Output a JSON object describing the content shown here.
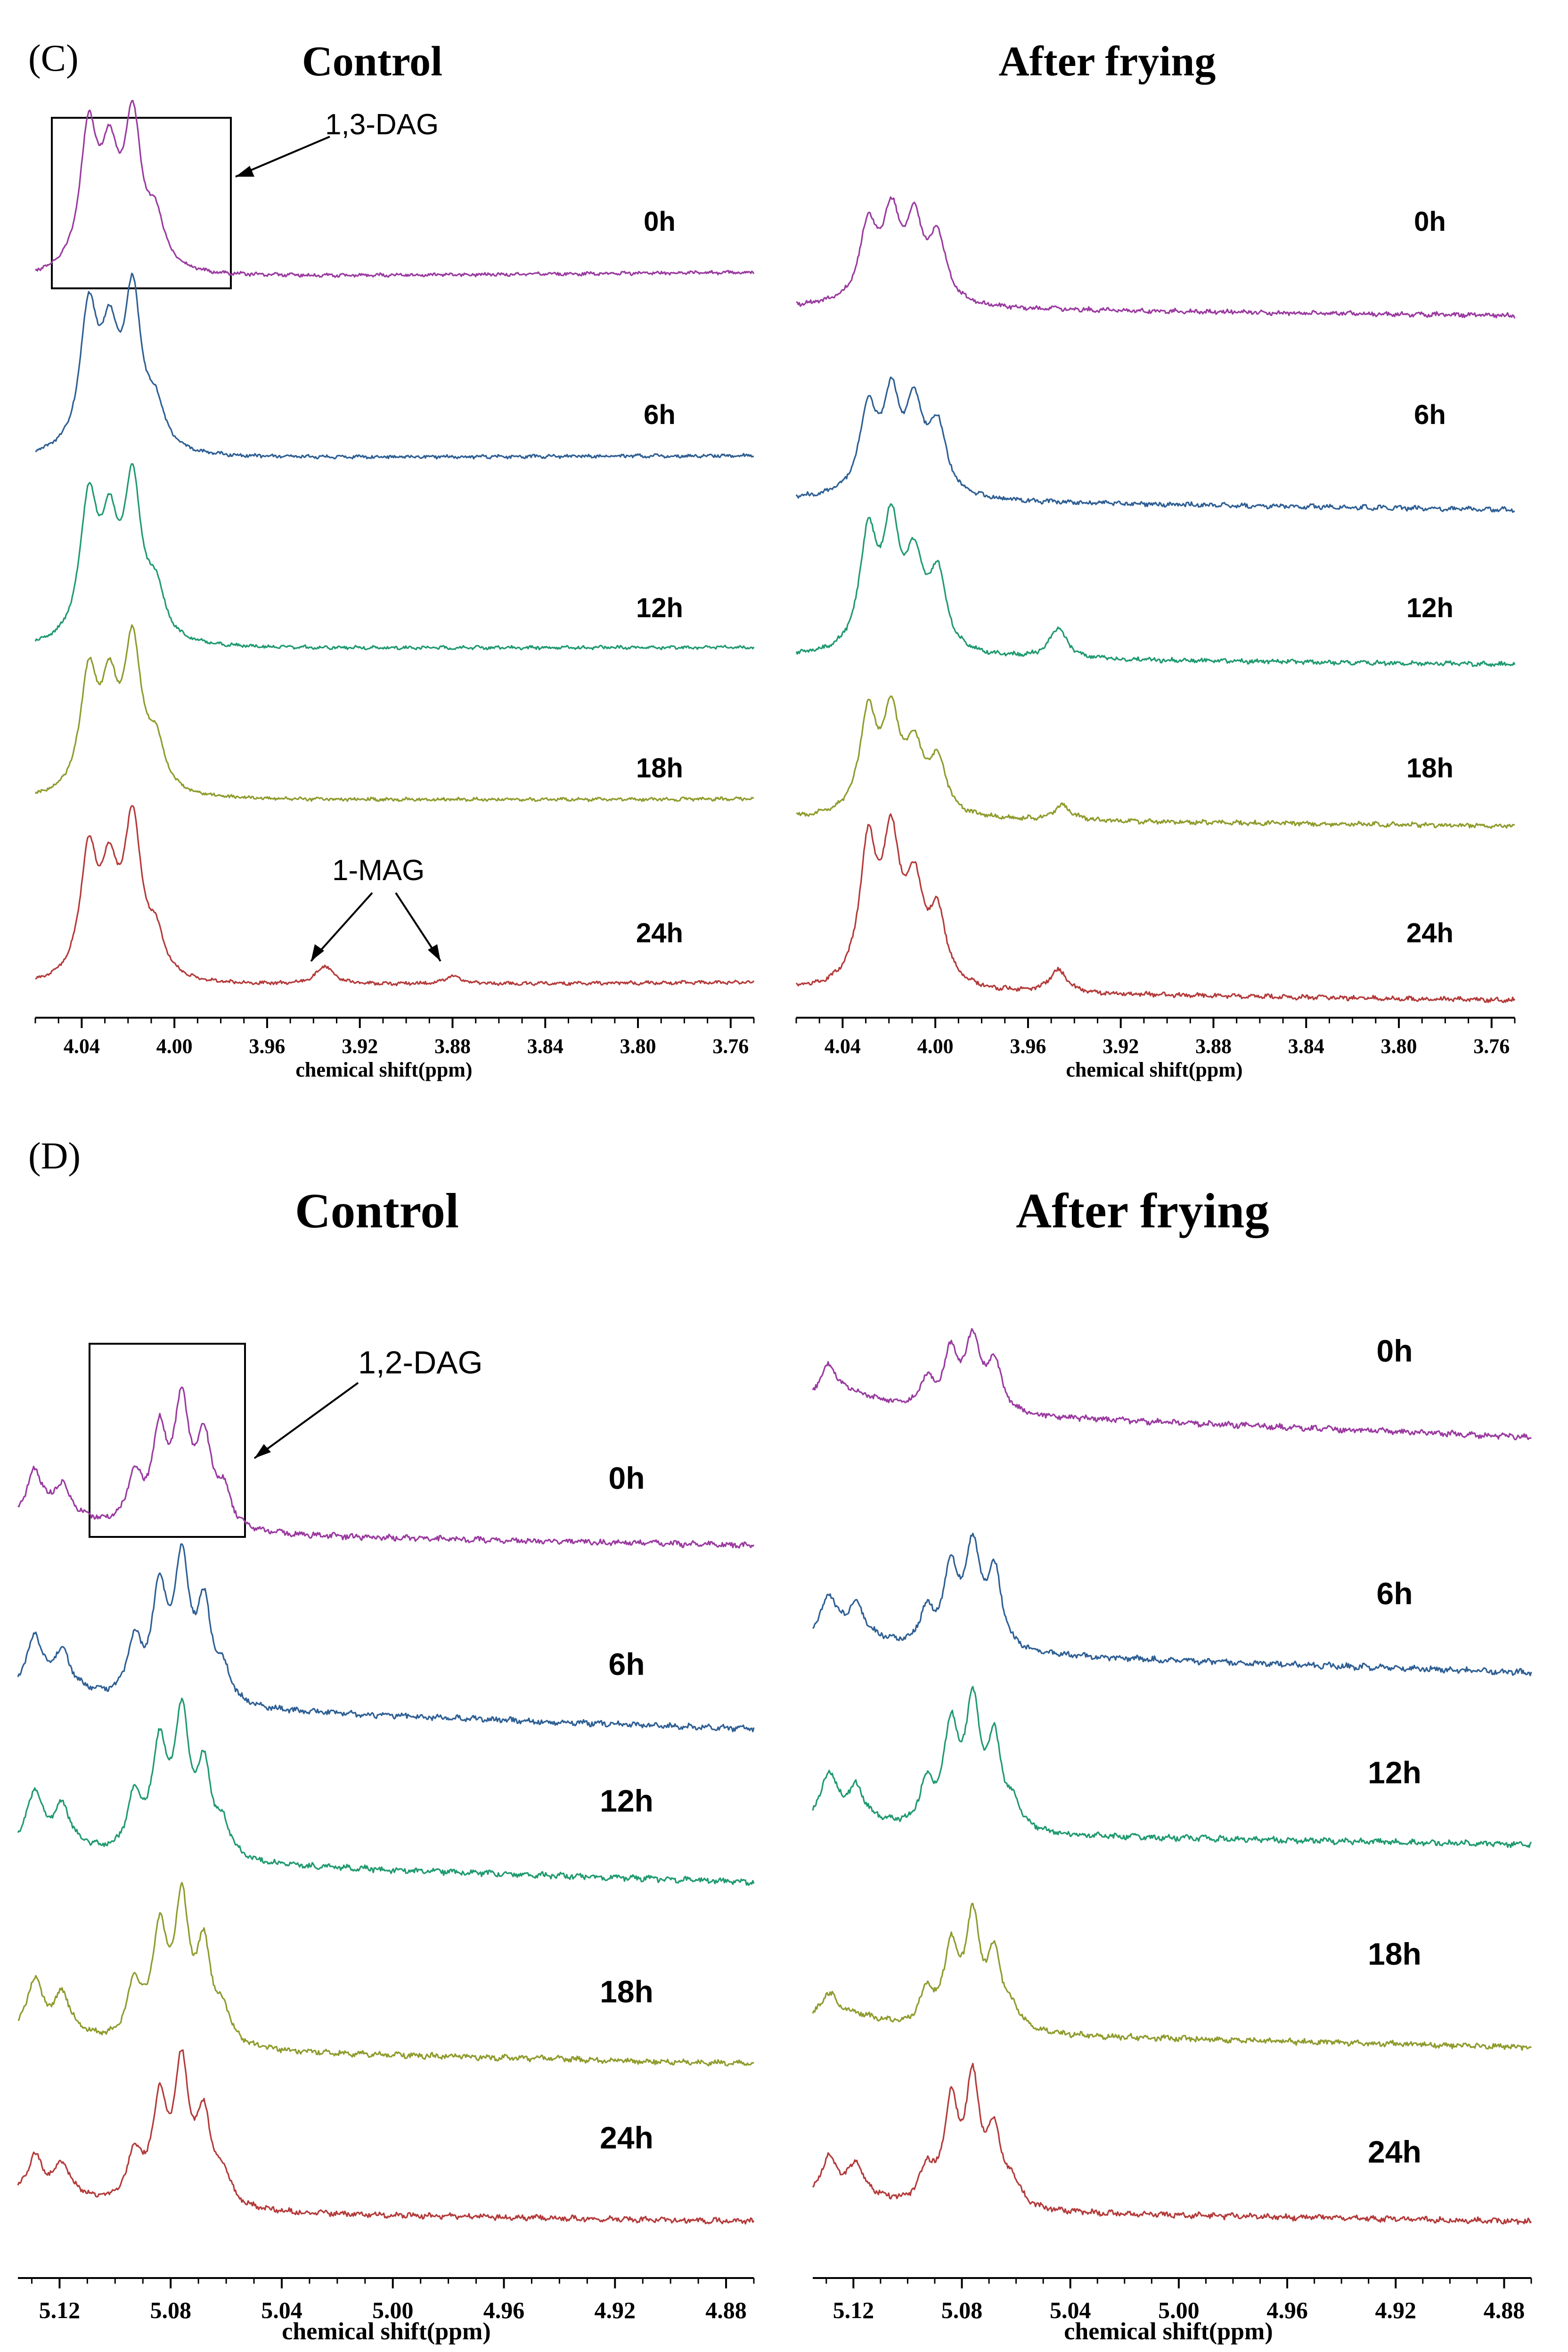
{
  "colors": {
    "0h": "#9a3aa0",
    "6h": "#2e5f94",
    "12h": "#1f9a6e",
    "18h": "#8f9b2c",
    "24h": "#b43a3a",
    "axis": "#000000"
  },
  "chart_data": [
    {
      "panel_label": "(C)",
      "title": "Control",
      "type": "line",
      "xlabel": "chemical shift(ppm)",
      "xlim": [
        4.06,
        3.75
      ],
      "xticks": [
        "4.04",
        "4.00",
        "3.96",
        "3.92",
        "3.88",
        "3.84",
        "3.80",
        "3.76"
      ],
      "series": [
        {
          "name": "0h",
          "peaks": [
            {
              "x": 4.037,
              "h": 0.9
            },
            {
              "x": 4.028,
              "h": 0.65
            },
            {
              "x": 4.018,
              "h": 0.95
            },
            {
              "x": 4.008,
              "h": 0.3
            }
          ]
        },
        {
          "name": "6h",
          "peaks": [
            {
              "x": 4.037,
              "h": 0.9
            },
            {
              "x": 4.028,
              "h": 0.65
            },
            {
              "x": 4.018,
              "h": 1.0
            },
            {
              "x": 4.008,
              "h": 0.25
            }
          ]
        },
        {
          "name": "12h",
          "peaks": [
            {
              "x": 4.037,
              "h": 0.9
            },
            {
              "x": 4.028,
              "h": 0.65
            },
            {
              "x": 4.018,
              "h": 1.0
            },
            {
              "x": 4.008,
              "h": 0.3
            }
          ]
        },
        {
          "name": "18h",
          "peaks": [
            {
              "x": 4.037,
              "h": 0.75
            },
            {
              "x": 4.028,
              "h": 0.6
            },
            {
              "x": 4.018,
              "h": 0.95
            },
            {
              "x": 4.008,
              "h": 0.3
            }
          ]
        },
        {
          "name": "24h",
          "peaks": [
            {
              "x": 4.037,
              "h": 0.8
            },
            {
              "x": 4.028,
              "h": 0.6
            },
            {
              "x": 4.018,
              "h": 1.0
            },
            {
              "x": 4.008,
              "h": 0.25
            },
            {
              "x": 3.935,
              "h": 0.12
            },
            {
              "x": 3.88,
              "h": 0.05
            }
          ]
        }
      ],
      "annotations": [
        {
          "text": "1,3-DAG"
        },
        {
          "text": "1-MAG"
        }
      ]
    },
    {
      "title": "After frying",
      "type": "line",
      "xlabel": "chemical shift(ppm)",
      "xlim": [
        4.06,
        3.75
      ],
      "xticks": [
        "4.04",
        "4.00",
        "3.96",
        "3.92",
        "3.88",
        "3.84",
        "3.80",
        "3.76"
      ],
      "series": [
        {
          "name": "0h",
          "peaks": [
            {
              "x": 4.029,
              "h": 0.5
            },
            {
              "x": 4.019,
              "h": 0.55
            },
            {
              "x": 4.009,
              "h": 0.5
            },
            {
              "x": 3.999,
              "h": 0.42
            }
          ]
        },
        {
          "name": "6h",
          "peaks": [
            {
              "x": 4.029,
              "h": 0.55
            },
            {
              "x": 4.019,
              "h": 0.6
            },
            {
              "x": 4.009,
              "h": 0.55
            },
            {
              "x": 3.999,
              "h": 0.45
            }
          ]
        },
        {
          "name": "12h",
          "peaks": [
            {
              "x": 4.029,
              "h": 0.75
            },
            {
              "x": 4.019,
              "h": 0.78
            },
            {
              "x": 4.009,
              "h": 0.55
            },
            {
              "x": 3.999,
              "h": 0.5
            },
            {
              "x": 3.947,
              "h": 0.2
            }
          ]
        },
        {
          "name": "18h",
          "peaks": [
            {
              "x": 4.029,
              "h": 0.65
            },
            {
              "x": 4.019,
              "h": 0.62
            },
            {
              "x": 4.009,
              "h": 0.4
            },
            {
              "x": 3.999,
              "h": 0.35
            },
            {
              "x": 3.945,
              "h": 0.1
            }
          ]
        },
        {
          "name": "24h",
          "peaks": [
            {
              "x": 4.029,
              "h": 0.9
            },
            {
              "x": 4.019,
              "h": 0.9
            },
            {
              "x": 4.009,
              "h": 0.6
            },
            {
              "x": 3.999,
              "h": 0.45
            },
            {
              "x": 3.947,
              "h": 0.15
            }
          ]
        }
      ]
    },
    {
      "panel_label": "(D)",
      "title": "Control",
      "type": "line",
      "xlabel": "chemical shift(ppm)",
      "xlim": [
        5.135,
        4.87
      ],
      "xticks": [
        "5.12",
        "5.08",
        "5.04",
        "5.00",
        "4.96",
        "4.92",
        "4.88"
      ],
      "series": [
        {
          "name": "0h",
          "peaks": [
            {
              "x": 5.129,
              "h": 0.3
            },
            {
              "x": 5.119,
              "h": 0.2
            },
            {
              "x": 5.093,
              "h": 0.35
            },
            {
              "x": 5.084,
              "h": 0.65
            },
            {
              "x": 5.076,
              "h": 0.85
            },
            {
              "x": 5.068,
              "h": 0.6
            },
            {
              "x": 5.061,
              "h": 0.25
            }
          ]
        },
        {
          "name": "6h",
          "peaks": [
            {
              "x": 5.129,
              "h": 0.35
            },
            {
              "x": 5.119,
              "h": 0.25
            },
            {
              "x": 5.093,
              "h": 0.4
            },
            {
              "x": 5.084,
              "h": 0.75
            },
            {
              "x": 5.076,
              "h": 0.95
            },
            {
              "x": 5.068,
              "h": 0.65
            },
            {
              "x": 5.061,
              "h": 0.2
            }
          ]
        },
        {
          "name": "12h",
          "peaks": [
            {
              "x": 5.129,
              "h": 0.35
            },
            {
              "x": 5.119,
              "h": 0.25
            },
            {
              "x": 5.093,
              "h": 0.4
            },
            {
              "x": 5.084,
              "h": 0.75
            },
            {
              "x": 5.076,
              "h": 0.95
            },
            {
              "x": 5.068,
              "h": 0.6
            },
            {
              "x": 5.061,
              "h": 0.2
            }
          ]
        },
        {
          "name": "18h",
          "peaks": [
            {
              "x": 5.129,
              "h": 0.35
            },
            {
              "x": 5.119,
              "h": 0.25
            },
            {
              "x": 5.093,
              "h": 0.4
            },
            {
              "x": 5.084,
              "h": 0.75
            },
            {
              "x": 5.076,
              "h": 0.95
            },
            {
              "x": 5.068,
              "h": 0.65
            },
            {
              "x": 5.061,
              "h": 0.2
            }
          ]
        },
        {
          "name": "24h",
          "peaks": [
            {
              "x": 5.129,
              "h": 0.25
            },
            {
              "x": 5.119,
              "h": 0.2
            },
            {
              "x": 5.093,
              "h": 0.35
            },
            {
              "x": 5.084,
              "h": 0.7
            },
            {
              "x": 5.076,
              "h": 0.95
            },
            {
              "x": 5.068,
              "h": 0.6
            },
            {
              "x": 5.061,
              "h": 0.2
            }
          ]
        }
      ],
      "annotations": [
        {
          "text": "1,2-DAG"
        }
      ]
    },
    {
      "title": "After frying",
      "type": "line",
      "xlabel": "chemical shift(ppm)",
      "xlim": [
        5.135,
        4.87
      ],
      "xticks": [
        "5.12",
        "5.08",
        "5.04",
        "5.00",
        "4.96",
        "4.92",
        "4.88"
      ],
      "series": [
        {
          "name": "0h",
          "peaks": [
            {
              "x": 5.129,
              "h": 0.2
            },
            {
              "x": 5.093,
              "h": 0.2
            },
            {
              "x": 5.084,
              "h": 0.4
            },
            {
              "x": 5.076,
              "h": 0.5
            },
            {
              "x": 5.068,
              "h": 0.35
            }
          ]
        },
        {
          "name": "6h",
          "peaks": [
            {
              "x": 5.129,
              "h": 0.25
            },
            {
              "x": 5.119,
              "h": 0.2
            },
            {
              "x": 5.093,
              "h": 0.25
            },
            {
              "x": 5.084,
              "h": 0.55
            },
            {
              "x": 5.076,
              "h": 0.7
            },
            {
              "x": 5.068,
              "h": 0.55
            }
          ]
        },
        {
          "name": "12h",
          "peaks": [
            {
              "x": 5.129,
              "h": 0.3
            },
            {
              "x": 5.119,
              "h": 0.2
            },
            {
              "x": 5.093,
              "h": 0.3
            },
            {
              "x": 5.084,
              "h": 0.7
            },
            {
              "x": 5.076,
              "h": 0.85
            },
            {
              "x": 5.068,
              "h": 0.6
            },
            {
              "x": 5.061,
              "h": 0.15
            }
          ]
        },
        {
          "name": "18h",
          "peaks": [
            {
              "x": 5.129,
              "h": 0.15
            },
            {
              "x": 5.093,
              "h": 0.25
            },
            {
              "x": 5.084,
              "h": 0.55
            },
            {
              "x": 5.076,
              "h": 0.75
            },
            {
              "x": 5.068,
              "h": 0.5
            },
            {
              "x": 5.061,
              "h": 0.12
            }
          ]
        },
        {
          "name": "24h",
          "peaks": [
            {
              "x": 5.129,
              "h": 0.25
            },
            {
              "x": 5.119,
              "h": 0.2
            },
            {
              "x": 5.093,
              "h": 0.25
            },
            {
              "x": 5.084,
              "h": 0.7
            },
            {
              "x": 5.076,
              "h": 0.85
            },
            {
              "x": 5.068,
              "h": 0.5
            },
            {
              "x": 5.061,
              "h": 0.15
            }
          ]
        }
      ]
    }
  ]
}
